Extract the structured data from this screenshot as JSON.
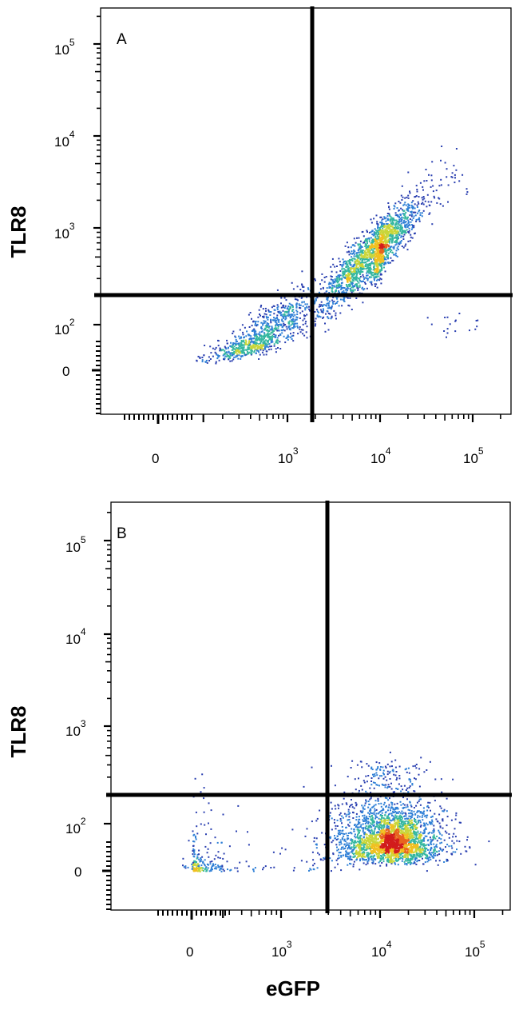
{
  "chart_data": [
    {
      "type": "scatter",
      "panel": "A",
      "title": "",
      "xlabel": "",
      "ylabel": "TLR8",
      "xscale": "biexponential",
      "yscale": "biexponential",
      "x_ticks": [
        {
          "base": "0",
          "exp": ""
        },
        {
          "base": "10",
          "exp": "3"
        },
        {
          "base": "10",
          "exp": "4"
        },
        {
          "base": "10",
          "exp": "5"
        }
      ],
      "y_ticks": [
        {
          "base": "0",
          "exp": ""
        },
        {
          "base": "10",
          "exp": "2"
        },
        {
          "base": "10",
          "exp": "3"
        },
        {
          "base": "10",
          "exp": "4"
        },
        {
          "base": "10",
          "exp": "5"
        }
      ],
      "gates": {
        "x": 1800,
        "y": 200
      },
      "colormap": [
        "#2a3fb0",
        "#2e7fd6",
        "#35b7a0",
        "#c9d63a",
        "#f0c020",
        "#e8641e",
        "#d21c1c"
      ],
      "clusters": [
        {
          "x": [
            150,
            2000
          ],
          "y": [
            30,
            200
          ],
          "n": 900
        },
        {
          "x": [
            2000,
            30000
          ],
          "y": [
            150,
            2000
          ],
          "n": 1700
        },
        {
          "x": [
            8000,
            12000
          ],
          "y": [
            400,
            800
          ],
          "n": 300
        },
        {
          "x": [
            30000,
            150000
          ],
          "y": [
            70,
            150
          ],
          "n": 18
        },
        {
          "x": [
            30000,
            100000
          ],
          "y": [
            2000,
            6000
          ],
          "n": 25
        }
      ]
    },
    {
      "type": "scatter",
      "panel": "B",
      "title": "",
      "xlabel": "eGFP",
      "ylabel": "TLR8",
      "xscale": "biexponential",
      "yscale": "biexponential",
      "x_ticks": [
        {
          "base": "0",
          "exp": ""
        },
        {
          "base": "10",
          "exp": "3"
        },
        {
          "base": "10",
          "exp": "4"
        },
        {
          "base": "10",
          "exp": "5"
        }
      ],
      "y_ticks": [
        {
          "base": "0",
          "exp": ""
        },
        {
          "base": "10",
          "exp": "2"
        },
        {
          "base": "10",
          "exp": "3"
        },
        {
          "base": "10",
          "exp": "4"
        },
        {
          "base": "10",
          "exp": "5"
        }
      ],
      "gates": {
        "x": 2800,
        "y": 200
      },
      "colormap": [
        "#2a3fb0",
        "#2e7fd6",
        "#35b7a0",
        "#c9d63a",
        "#f0c020",
        "#e8641e",
        "#d21c1c"
      ],
      "clusters": [
        {
          "x": [
            3000,
            50000
          ],
          "y": [
            20,
            200
          ],
          "n": 2200
        },
        {
          "x": [
            8000,
            25000
          ],
          "y": [
            40,
            120
          ],
          "n": 600
        },
        {
          "x": [
            0,
            3000
          ],
          "y": [
            0,
            200
          ],
          "n": 250
        },
        {
          "x": [
            3000,
            40000
          ],
          "y": [
            200,
            500
          ],
          "n": 120
        }
      ]
    }
  ]
}
